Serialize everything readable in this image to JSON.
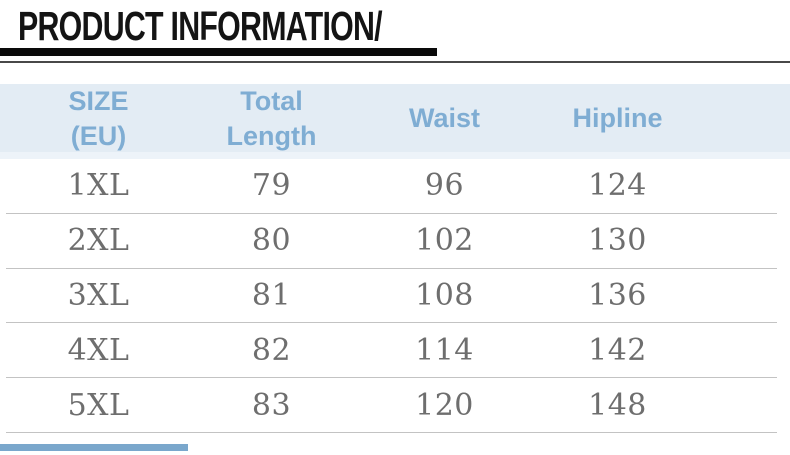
{
  "page": {
    "title": "PRODUCT INFORMATION/"
  },
  "table": {
    "columns": [
      "SIZE\n(EU)",
      "Total\nLength",
      "Waist",
      "Hipline"
    ],
    "rows": [
      [
        "1XL",
        "79",
        "96",
        "124"
      ],
      [
        "2XL",
        "80",
        "102",
        "130"
      ],
      [
        "3XL",
        "81",
        "108",
        "136"
      ],
      [
        "4XL",
        "82",
        "114",
        "142"
      ],
      [
        "5XL",
        "83",
        "120",
        "148"
      ]
    ]
  },
  "colors": {
    "header_bg": "#e3ecf4",
    "header_bg_light": "#edf3f9",
    "header_text": "#7fadd3",
    "body_text": "#6e6e6e",
    "separator": "#c3c3c3",
    "title_text": "#141414",
    "title_bar": "#0a0a0a",
    "divider": "#484848",
    "accent_bar": "#7aa7cc",
    "page_bg": "#ffffff"
  }
}
